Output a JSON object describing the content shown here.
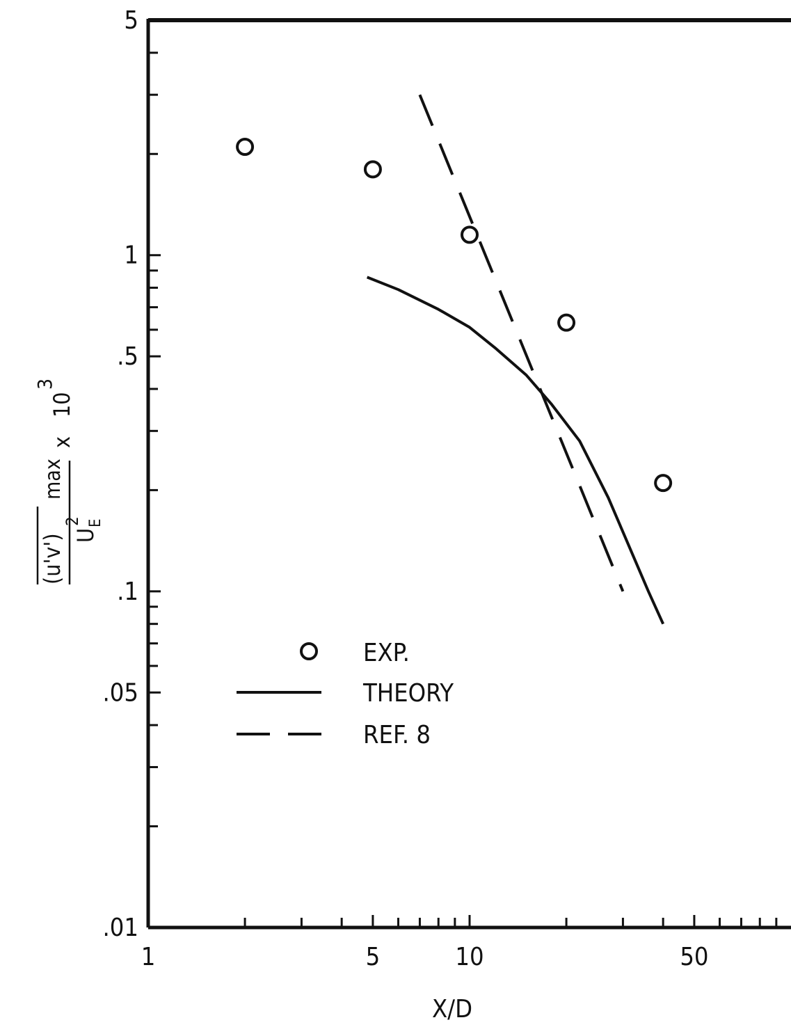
{
  "chart_data": {
    "type": "scatter",
    "x_scale": "log",
    "y_scale": "log",
    "xlim": [
      1,
      100
    ],
    "ylim": [
      0.01,
      5
    ],
    "xlabel": "X/D",
    "ylabel": {
      "numerator": "(u'v')",
      "numerator_subscript": "max",
      "denominator": "U",
      "denominator_subscript": "E",
      "denominator_superscript": "2",
      "multiplier": "x",
      "power_base": "10",
      "power_exponent": "3"
    },
    "x_ticks": [
      {
        "value": 1,
        "label": "1"
      },
      {
        "value": 5,
        "label": "5"
      },
      {
        "value": 10,
        "label": "10"
      },
      {
        "value": 50,
        "label": "50"
      }
    ],
    "x_minor_ticks": [
      2,
      3,
      4,
      6,
      7,
      8,
      9,
      20,
      30,
      40,
      60,
      70,
      80,
      90
    ],
    "y_ticks": [
      {
        "value": 5,
        "label": "5"
      },
      {
        "value": 1,
        "label": "1"
      },
      {
        "value": 0.5,
        "label": ".5"
      },
      {
        "value": 0.1,
        "label": ".1"
      },
      {
        "value": 0.05,
        "label": ".05"
      },
      {
        "value": 0.01,
        "label": ".01"
      }
    ],
    "y_minor_ticks": [
      0.02,
      0.03,
      0.04,
      0.06,
      0.07,
      0.08,
      0.09,
      0.2,
      0.3,
      0.4,
      0.6,
      0.7,
      0.8,
      0.9,
      2,
      3,
      4
    ],
    "grid": false,
    "legend_position": "lower-left",
    "series": [
      {
        "name": "EXP.",
        "kind": "markers",
        "marker": "open-circle",
        "x": [
          2,
          5,
          10,
          20,
          40
        ],
        "y": [
          2.1,
          1.8,
          1.15,
          0.63,
          0.21
        ]
      },
      {
        "name": "THEORY",
        "kind": "line",
        "style": "solid",
        "x": [
          4.8,
          6,
          8,
          10,
          12,
          15,
          18,
          22,
          27,
          32,
          36,
          40
        ],
        "y": [
          0.86,
          0.79,
          0.69,
          0.61,
          0.53,
          0.44,
          0.36,
          0.28,
          0.19,
          0.13,
          0.1,
          0.08
        ]
      },
      {
        "name": "REF. 8",
        "kind": "line",
        "style": "dashed",
        "x": [
          7,
          30
        ],
        "y": [
          3.0,
          0.1
        ]
      }
    ]
  }
}
